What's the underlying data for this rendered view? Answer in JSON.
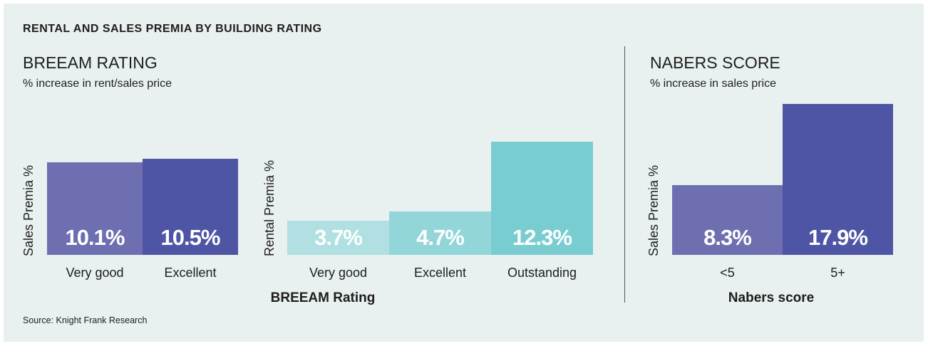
{
  "title": "RENTAL AND SALES PREMIA BY BUILDING RATING",
  "breeam": {
    "heading": "BREEAM RATING",
    "subtitle": "% increase in rent/sales price"
  },
  "nabers": {
    "heading": "NABERS SCORE",
    "subtitle": "% increase in sales price"
  },
  "source": "Source: Knight Frank Research",
  "chart_data": [
    {
      "type": "bar",
      "title": "",
      "xlabel": "",
      "ylabel": "Sales Premia %",
      "categories": [
        "Very good",
        "Excellent"
      ],
      "values": [
        10.1,
        10.5
      ],
      "labels": [
        "10.1%",
        "10.5%"
      ],
      "colors": [
        "#6e6fb0",
        "#4f55a5"
      ],
      "ylim": [
        0,
        15.5
      ]
    },
    {
      "type": "bar",
      "title": "",
      "xlabel": "BREEAM Rating",
      "ylabel": "Rental Premia %",
      "categories": [
        "Very good",
        "Excellent",
        "Outstanding"
      ],
      "values": [
        3.7,
        4.7,
        12.3
      ],
      "labels": [
        "3.7%",
        "4.7%",
        "12.3%"
      ],
      "colors": [
        "#b0e0e2",
        "#93d6da",
        "#79cdd0"
      ],
      "ylim": [
        0,
        15.5
      ]
    },
    {
      "type": "bar",
      "title": "",
      "xlabel": "Nabers score",
      "ylabel": "Sales Premia %",
      "categories": [
        "<5",
        "5+"
      ],
      "values": [
        8.3,
        17.9
      ],
      "labels": [
        "8.3%",
        "17.9%"
      ],
      "colors": [
        "#6e6fb0",
        "#4f55a5"
      ],
      "ylim": [
        0,
        18.5
      ]
    }
  ]
}
